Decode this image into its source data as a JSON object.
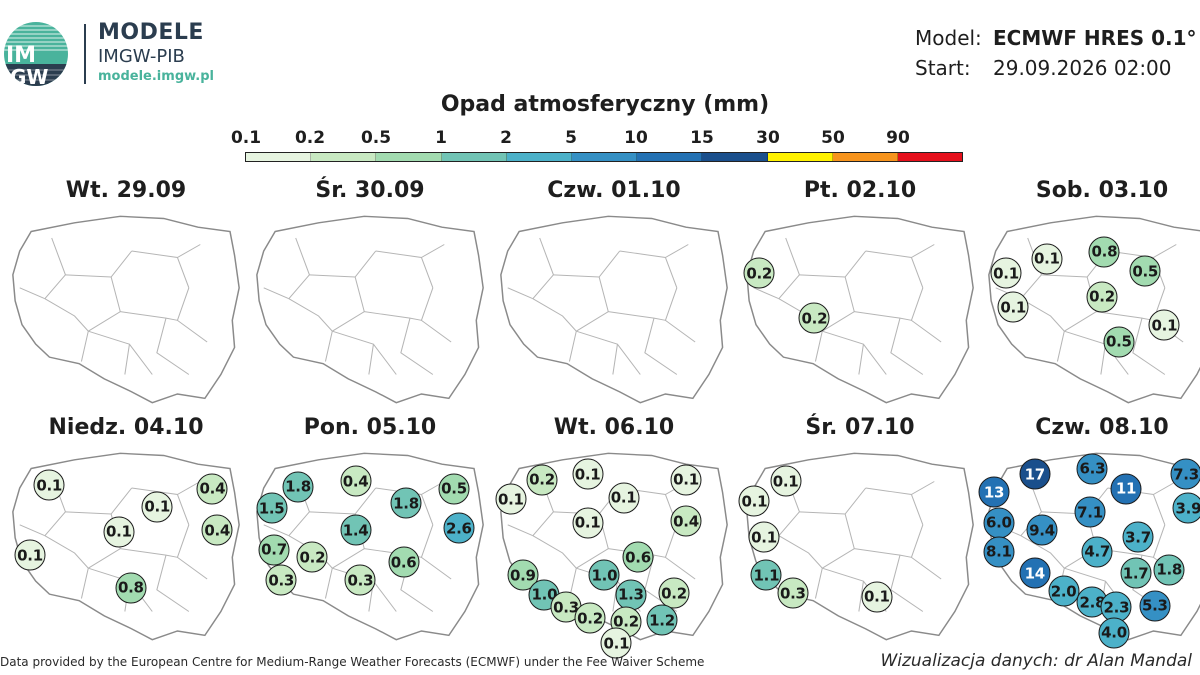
{
  "brand": {
    "logo_text_top": "IM",
    "logo_text_bottom": "GW",
    "title": "MODELE",
    "subtitle": "IMGW-PIB",
    "url": "modele.imgw.pl",
    "logo_colors": [
      "#49b39c",
      "#2b3d4f"
    ]
  },
  "meta": {
    "model_label": "Model:",
    "model_value": "ECMWF HRES 0.1°",
    "start_label": "Start:",
    "start_value": "29.09.2026 02:00"
  },
  "legend": {
    "title": "Opad atmosferyczny (mm)",
    "ticks": [
      "0.1",
      "0.2",
      "0.5",
      "1",
      "2",
      "5",
      "10",
      "15",
      "30",
      "50",
      "90"
    ],
    "colors": [
      "#e6f4e0",
      "#c8e9c2",
      "#a2dbb0",
      "#71c4b5",
      "#4cb1c9",
      "#3590c4",
      "#2371b3",
      "#1a4f8c",
      "#fff200",
      "#f7941d",
      "#e5101c"
    ]
  },
  "panels": [
    {
      "title": "Wt. 29.09",
      "badges": []
    },
    {
      "title": "Śr. 30.09",
      "badges": []
    },
    {
      "title": "Czw. 01.10",
      "badges": []
    },
    {
      "title": "Pt. 02.10",
      "badges": [
        {
          "label": "0.2",
          "value": 0.2,
          "fx": 0.08,
          "fy": 0.34
        },
        {
          "label": "0.2",
          "value": 0.2,
          "fx": 0.31,
          "fy": 0.59
        }
      ]
    },
    {
      "title": "Sob. 03.10",
      "badges": [
        {
          "label": "0.1",
          "value": 0.1,
          "fx": 0.27,
          "fy": 0.26
        },
        {
          "label": "0.8",
          "value": 0.8,
          "fx": 0.51,
          "fy": 0.22
        },
        {
          "label": "0.1",
          "value": 0.1,
          "fx": 0.1,
          "fy": 0.34
        },
        {
          "label": "0.5",
          "value": 0.5,
          "fx": 0.68,
          "fy": 0.33
        },
        {
          "label": "0.2",
          "value": 0.2,
          "fx": 0.5,
          "fy": 0.47
        },
        {
          "label": "0.1",
          "value": 0.1,
          "fx": 0.13,
          "fy": 0.53
        },
        {
          "label": "0.1",
          "value": 0.1,
          "fx": 0.76,
          "fy": 0.63
        },
        {
          "label": "0.5",
          "value": 0.5,
          "fx": 0.57,
          "fy": 0.72
        }
      ]
    },
    {
      "title": "Niedz. 04.10",
      "badges": [
        {
          "label": "0.1",
          "value": 0.1,
          "fx": 0.18,
          "fy": 0.2
        },
        {
          "label": "0.4",
          "value": 0.4,
          "fx": 0.86,
          "fy": 0.22
        },
        {
          "label": "0.1",
          "value": 0.1,
          "fx": 0.63,
          "fy": 0.32
        },
        {
          "label": "0.1",
          "value": 0.1,
          "fx": 0.47,
          "fy": 0.46
        },
        {
          "label": "0.4",
          "value": 0.4,
          "fx": 0.88,
          "fy": 0.45
        },
        {
          "label": "0.1",
          "value": 0.1,
          "fx": 0.1,
          "fy": 0.59
        },
        {
          "label": "0.8",
          "value": 0.8,
          "fx": 0.52,
          "fy": 0.77
        }
      ]
    },
    {
      "title": "Pon. 05.10",
      "badges": [
        {
          "label": "1.8",
          "value": 1.8,
          "fx": 0.2,
          "fy": 0.21
        },
        {
          "label": "0.4",
          "value": 0.4,
          "fx": 0.44,
          "fy": 0.18
        },
        {
          "label": "0.5",
          "value": 0.5,
          "fx": 0.85,
          "fy": 0.22
        },
        {
          "label": "1.5",
          "value": 1.5,
          "fx": 0.09,
          "fy": 0.33
        },
        {
          "label": "1.8",
          "value": 1.8,
          "fx": 0.65,
          "fy": 0.3
        },
        {
          "label": "1.4",
          "value": 1.4,
          "fx": 0.44,
          "fy": 0.45
        },
        {
          "label": "2.6",
          "value": 2.6,
          "fx": 0.87,
          "fy": 0.44
        },
        {
          "label": "0.7",
          "value": 0.7,
          "fx": 0.1,
          "fy": 0.56
        },
        {
          "label": "0.2",
          "value": 0.2,
          "fx": 0.26,
          "fy": 0.6
        },
        {
          "label": "0.6",
          "value": 0.6,
          "fx": 0.64,
          "fy": 0.63
        },
        {
          "label": "0.3",
          "value": 0.3,
          "fx": 0.13,
          "fy": 0.73
        },
        {
          "label": "0.3",
          "value": 0.3,
          "fx": 0.46,
          "fy": 0.73
        }
      ]
    },
    {
      "title": "Wt. 06.10",
      "badges": [
        {
          "label": "0.2",
          "value": 0.2,
          "fx": 0.2,
          "fy": 0.17
        },
        {
          "label": "0.1",
          "value": 0.1,
          "fx": 0.39,
          "fy": 0.14
        },
        {
          "label": "0.1",
          "value": 0.1,
          "fx": 0.8,
          "fy": 0.17
        },
        {
          "label": "0.1",
          "value": 0.1,
          "fx": 0.07,
          "fy": 0.28
        },
        {
          "label": "0.1",
          "value": 0.1,
          "fx": 0.54,
          "fy": 0.27
        },
        {
          "label": "0.1",
          "value": 0.1,
          "fx": 0.39,
          "fy": 0.41
        },
        {
          "label": "0.4",
          "value": 0.4,
          "fx": 0.8,
          "fy": 0.4
        },
        {
          "label": "0.6",
          "value": 0.6,
          "fx": 0.6,
          "fy": 0.6
        },
        {
          "label": "0.9",
          "value": 0.9,
          "fx": 0.12,
          "fy": 0.7
        },
        {
          "label": "1.0",
          "value": 1.0,
          "fx": 0.46,
          "fy": 0.7
        },
        {
          "label": "1.0",
          "value": 1.0,
          "fx": 0.21,
          "fy": 0.81
        },
        {
          "label": "1.3",
          "value": 1.3,
          "fx": 0.57,
          "fy": 0.81
        },
        {
          "label": "0.2",
          "value": 0.2,
          "fx": 0.75,
          "fy": 0.8
        },
        {
          "label": "0.3",
          "value": 0.3,
          "fx": 0.3,
          "fy": 0.88
        },
        {
          "label": "0.2",
          "value": 0.2,
          "fx": 0.4,
          "fy": 0.94
        },
        {
          "label": "0.2",
          "value": 0.2,
          "fx": 0.55,
          "fy": 0.96
        },
        {
          "label": "1.2",
          "value": 1.2,
          "fx": 0.7,
          "fy": 0.95
        },
        {
          "label": "0.1",
          "value": 0.1,
          "fx": 0.51,
          "fy": 1.08
        }
      ]
    },
    {
      "title": "Śr. 07.10",
      "badges": [
        {
          "label": "0.1",
          "value": 0.1,
          "fx": 0.19,
          "fy": 0.18
        },
        {
          "label": "0.1",
          "value": 0.1,
          "fx": 0.06,
          "fy": 0.29
        },
        {
          "label": "0.1",
          "value": 0.1,
          "fx": 0.1,
          "fy": 0.49
        },
        {
          "label": "1.1",
          "value": 1.1,
          "fx": 0.11,
          "fy": 0.7
        },
        {
          "label": "0.3",
          "value": 0.3,
          "fx": 0.22,
          "fy": 0.8
        },
        {
          "label": "0.1",
          "value": 0.1,
          "fx": 0.57,
          "fy": 0.82
        }
      ]
    },
    {
      "title": "Czw. 08.10",
      "badges": [
        {
          "label": "17",
          "value": 17,
          "fx": 0.22,
          "fy": 0.14
        },
        {
          "label": "6.3",
          "value": 6.3,
          "fx": 0.46,
          "fy": 0.11
        },
        {
          "label": "7.3",
          "value": 7.3,
          "fx": 0.85,
          "fy": 0.14
        },
        {
          "label": "13",
          "value": 13,
          "fx": 0.05,
          "fy": 0.24
        },
        {
          "label": "11",
          "value": 11,
          "fx": 0.6,
          "fy": 0.22
        },
        {
          "label": "3.9",
          "value": 3.9,
          "fx": 0.86,
          "fy": 0.33
        },
        {
          "label": "7.1",
          "value": 7.1,
          "fx": 0.45,
          "fy": 0.35
        },
        {
          "label": "6.0",
          "value": 6.0,
          "fx": 0.07,
          "fy": 0.41
        },
        {
          "label": "9.4",
          "value": 9.4,
          "fx": 0.25,
          "fy": 0.45
        },
        {
          "label": "3.7",
          "value": 3.7,
          "fx": 0.65,
          "fy": 0.49
        },
        {
          "label": "4.7",
          "value": 4.7,
          "fx": 0.48,
          "fy": 0.57
        },
        {
          "label": "8.1",
          "value": 8.1,
          "fx": 0.07,
          "fy": 0.57
        },
        {
          "label": "14",
          "value": 14,
          "fx": 0.22,
          "fy": 0.69
        },
        {
          "label": "1.7",
          "value": 1.7,
          "fx": 0.64,
          "fy": 0.69
        },
        {
          "label": "1.8",
          "value": 1.8,
          "fx": 0.78,
          "fy": 0.67
        },
        {
          "label": "2.0",
          "value": 2.0,
          "fx": 0.34,
          "fy": 0.79
        },
        {
          "label": "2.8",
          "value": 2.8,
          "fx": 0.46,
          "fy": 0.85
        },
        {
          "label": "2.3",
          "value": 2.3,
          "fx": 0.56,
          "fy": 0.88
        },
        {
          "label": "5.3",
          "value": 5.3,
          "fx": 0.72,
          "fy": 0.87
        },
        {
          "label": "4.0",
          "value": 4.0,
          "fx": 0.55,
          "fy": 1.02
        }
      ]
    }
  ],
  "footer": {
    "credit": "Data provided by the European Centre for Medium-Range Weather Forecasts (ECMWF) under the Fee Waiver Scheme",
    "author": "Wizualizacja danych: dr Alan Mandal"
  }
}
